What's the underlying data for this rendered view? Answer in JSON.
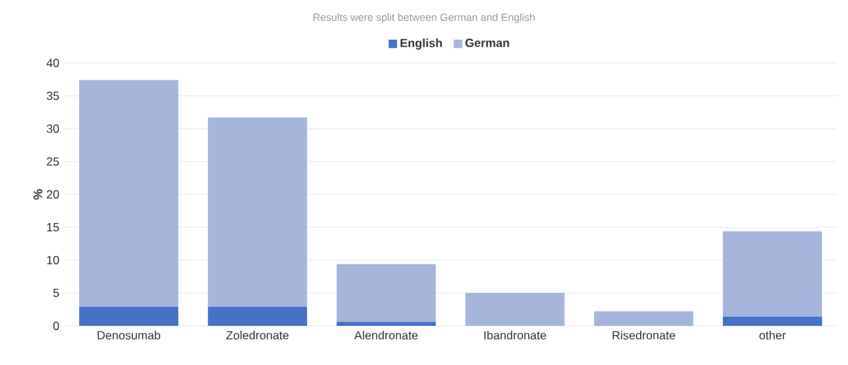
{
  "chart_data": {
    "type": "bar",
    "title": "Results were split between German and English",
    "ylabel": "%",
    "categories": [
      "Denosumab",
      "Zoledronate",
      "Alendronate",
      "Ibandronate",
      "Risedronate",
      "other"
    ],
    "stacked": true,
    "series": [
      {
        "name": "English",
        "color": "#4472c4",
        "values": [
          2.9,
          2.9,
          0.6,
          0,
          0,
          1.4
        ]
      },
      {
        "name": "German",
        "color": "#a5b5db",
        "values": [
          34.5,
          28.8,
          8.8,
          5.0,
          2.2,
          13.0
        ]
      }
    ],
    "ylim": [
      0,
      40
    ],
    "yticks": [
      0,
      5,
      10,
      15,
      20,
      25,
      30,
      35,
      40
    ],
    "grid": "y",
    "legend": "top"
  }
}
